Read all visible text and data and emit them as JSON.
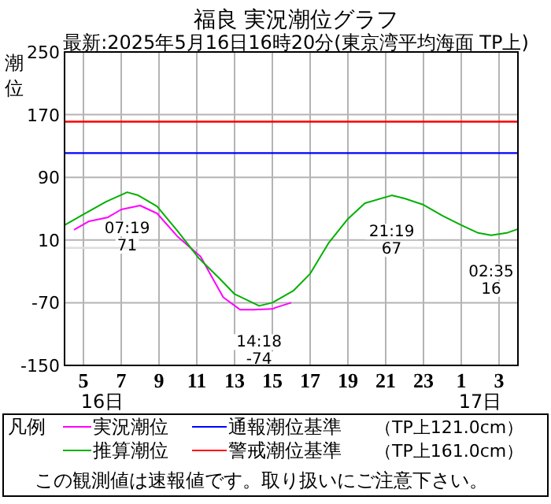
{
  "chart_data": {
    "type": "line",
    "title": "福良 実況潮位グラフ",
    "subtitle": "最新:2025年5月16日16時20分(東京湾平均海面 TP上)",
    "ylabel": "潮位",
    "legend_title": "凡例",
    "xlim": [
      "2025-05-16T04:00",
      "2025-05-17T04:00"
    ],
    "xticks": [
      {
        "value": "2025-05-16T05:00",
        "label": "5"
      },
      {
        "value": "2025-05-16T07:00",
        "label": "7"
      },
      {
        "value": "2025-05-16T09:00",
        "label": "9"
      },
      {
        "value": "2025-05-16T11:00",
        "label": "11"
      },
      {
        "value": "2025-05-16T13:00",
        "label": "13"
      },
      {
        "value": "2025-05-16T15:00",
        "label": "15"
      },
      {
        "value": "2025-05-16T17:00",
        "label": "17"
      },
      {
        "value": "2025-05-16T19:00",
        "label": "19"
      },
      {
        "value": "2025-05-16T21:00",
        "label": "21"
      },
      {
        "value": "2025-05-16T23:00",
        "label": "23"
      },
      {
        "value": "2025-05-17T01:00",
        "label": "1"
      },
      {
        "value": "2025-05-17T03:00",
        "label": "3"
      }
    ],
    "ylim": [
      -150,
      250
    ],
    "yticks": [
      -150,
      -70,
      10,
      90,
      170,
      250
    ],
    "grid": true,
    "legend": "bottom",
    "marker": "none",
    "line_style": "solid",
    "series": [
      {
        "name": "実況潮位",
        "color": "#ff00ff",
        "x": [
          "2025-05-16T04:30",
          "2025-05-16T05:18",
          "2025-05-16T06:18",
          "2025-05-16T07:00",
          "2025-05-16T08:00",
          "2025-05-16T08:54",
          "2025-05-16T10:00",
          "2025-05-16T11:12",
          "2025-05-16T11:42",
          "2025-05-16T12:24",
          "2025-05-16T13:18",
          "2025-05-16T14:00",
          "2025-05-16T15:00",
          "2025-05-16T15:12",
          "2025-05-16T16:00"
        ],
        "values": [
          23,
          34,
          39,
          49,
          54,
          44,
          14,
          -11,
          -33,
          -63,
          -79,
          -79,
          -78,
          -76,
          -70
        ]
      },
      {
        "name": "推算潮位",
        "color": "#00b000",
        "x": [
          "2025-05-16T04:00",
          "2025-05-16T05:06",
          "2025-05-16T06:12",
          "2025-05-16T07:19",
          "2025-05-16T07:54",
          "2025-05-16T08:54",
          "2025-05-16T10:00",
          "2025-05-16T11:06",
          "2025-05-16T12:12",
          "2025-05-16T13:00",
          "2025-05-16T14:18",
          "2025-05-16T15:00",
          "2025-05-16T16:06",
          "2025-05-16T17:00",
          "2025-05-16T18:00",
          "2025-05-16T19:00",
          "2025-05-16T19:54",
          "2025-05-16T21:19",
          "2025-05-16T22:00",
          "2025-05-16T23:00",
          "2025-05-17T00:00",
          "2025-05-17T01:00",
          "2025-05-17T01:54",
          "2025-05-17T02:35",
          "2025-05-17T03:24",
          "2025-05-17T04:00"
        ],
        "values": [
          29,
          44,
          59,
          71,
          67,
          53,
          21,
          -13,
          -39,
          -59,
          -74,
          -70,
          -55,
          -33,
          7,
          37,
          57,
          67,
          63,
          55,
          41,
          29,
          19,
          16,
          19,
          24
        ]
      }
    ],
    "ref_lines": [
      {
        "axis": "y",
        "value": 0,
        "color": "#dddddd"
      },
      {
        "axis": "y",
        "value": 121,
        "label": "通報潮位基準",
        "color": "#0000ff"
      },
      {
        "axis": "y",
        "value": 161,
        "label": "警戒潮位基準",
        "color": "#ff0000"
      }
    ],
    "annotations": [
      "16日",
      "17日",
      {
        "text": "07:19\n71",
        "x": "2025-05-16T07:19",
        "y": 71
      },
      {
        "text": "14:18\n-74",
        "x": "2025-05-16T14:18",
        "y": -74
      },
      {
        "text": "21:19\n67",
        "x": "2025-05-16T21:19",
        "y": 67
      },
      {
        "text": "02:35\n16",
        "x": "2025-05-17T02:35",
        "y": 16
      },
      "（TP上121.0cm）",
      "（TP上161.0cm）",
      "この観測値は速報値です。取り扱いにご注意下さい。"
    ]
  }
}
